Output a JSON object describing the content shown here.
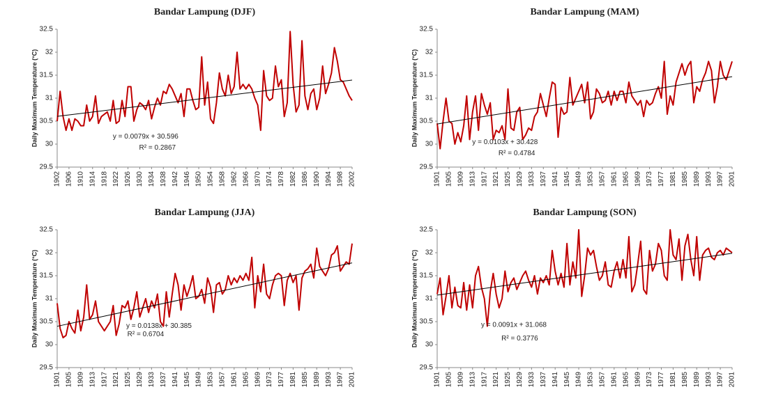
{
  "chart_data": [
    {
      "type": "line",
      "title": "Bandar Lampung (DJF)",
      "y_label": "Daily Maximum Temperature (°C)",
      "color": "#c00000",
      "x": [
        1902,
        1903,
        1904,
        1905,
        1906,
        1907,
        1908,
        1909,
        1910,
        1911,
        1912,
        1913,
        1914,
        1915,
        1916,
        1917,
        1918,
        1919,
        1920,
        1921,
        1922,
        1923,
        1924,
        1925,
        1926,
        1927,
        1928,
        1929,
        1930,
        1931,
        1932,
        1933,
        1934,
        1935,
        1936,
        1937,
        1938,
        1939,
        1940,
        1941,
        1942,
        1943,
        1944,
        1945,
        1946,
        1947,
        1948,
        1949,
        1950,
        1951,
        1952,
        1953,
        1954,
        1955,
        1956,
        1957,
        1958,
        1959,
        1960,
        1961,
        1962,
        1963,
        1964,
        1965,
        1966,
        1967,
        1968,
        1969,
        1970,
        1971,
        1972,
        1973,
        1974,
        1975,
        1976,
        1977,
        1978,
        1979,
        1980,
        1981,
        1982,
        1983,
        1984,
        1985,
        1986,
        1987,
        1988,
        1989,
        1990,
        1991,
        1992,
        1993,
        1994,
        1995,
        1996,
        1997,
        1998,
        1999,
        2000,
        2001,
        2002
      ],
      "values": [
        30.5,
        31.15,
        30.6,
        30.3,
        30.55,
        30.3,
        30.55,
        30.5,
        30.4,
        30.4,
        30.85,
        30.5,
        30.6,
        31.05,
        30.45,
        30.6,
        30.65,
        30.7,
        30.5,
        30.95,
        30.45,
        30.5,
        30.95,
        30.6,
        31.25,
        31.25,
        30.5,
        30.75,
        30.9,
        30.85,
        30.75,
        30.95,
        30.55,
        30.8,
        31.0,
        30.85,
        31.15,
        31.1,
        31.3,
        31.2,
        31.05,
        30.9,
        31.1,
        30.6,
        31.2,
        31.2,
        30.95,
        30.75,
        30.8,
        31.9,
        30.85,
        31.35,
        30.55,
        30.45,
        30.9,
        31.55,
        31.2,
        31.05,
        31.5,
        31.1,
        31.25,
        32.0,
        31.2,
        31.3,
        31.2,
        31.3,
        31.2,
        31.0,
        30.85,
        30.3,
        31.6,
        31.05,
        30.95,
        31.0,
        31.7,
        31.25,
        31.4,
        30.6,
        30.9,
        32.45,
        31.3,
        30.7,
        30.85,
        32.25,
        31.05,
        30.75,
        31.1,
        31.2,
        30.75,
        31.0,
        31.7,
        31.1,
        31.3,
        31.55,
        32.1,
        31.8,
        31.4,
        31.35,
        31.2,
        31.05,
        30.95
      ],
      "xlim": [
        1902,
        2002
      ],
      "xticks": [
        1902,
        1906,
        1910,
        1914,
        1918,
        1922,
        1926,
        1930,
        1934,
        1938,
        1942,
        1946,
        1950,
        1954,
        1958,
        1962,
        1966,
        1970,
        1974,
        1978,
        1982,
        1986,
        1990,
        1994,
        1998,
        2002
      ],
      "ylim": [
        29.5,
        32.5
      ],
      "yticks": [
        29.5,
        30,
        30.5,
        31,
        31.5,
        32,
        32.5
      ],
      "grid": false,
      "trendline": {
        "slope": 0.0079,
        "intercept": 30.596,
        "color": "#000000",
        "label": "y = 0.0079x + 30.596",
        "r2_label": "R² = 0.2867"
      }
    },
    {
      "type": "line",
      "title": "Bandar Lampung (MAM)",
      "y_label": "Daily Maximum Temperature (°C)",
      "color": "#c00000",
      "x": [
        1901,
        1902,
        1903,
        1904,
        1905,
        1906,
        1907,
        1908,
        1909,
        1910,
        1911,
        1912,
        1913,
        1914,
        1915,
        1916,
        1917,
        1918,
        1919,
        1920,
        1921,
        1922,
        1923,
        1924,
        1925,
        1926,
        1927,
        1928,
        1929,
        1930,
        1931,
        1932,
        1933,
        1934,
        1935,
        1936,
        1937,
        1938,
        1939,
        1940,
        1941,
        1942,
        1943,
        1944,
        1945,
        1946,
        1947,
        1948,
        1949,
        1950,
        1951,
        1952,
        1953,
        1954,
        1955,
        1956,
        1957,
        1958,
        1959,
        1960,
        1961,
        1962,
        1963,
        1964,
        1965,
        1966,
        1967,
        1968,
        1969,
        1970,
        1971,
        1972,
        1973,
        1974,
        1975,
        1976,
        1977,
        1978,
        1979,
        1980,
        1981,
        1982,
        1983,
        1984,
        1985,
        1986,
        1987,
        1988,
        1989,
        1990,
        1991,
        1992,
        1993,
        1994,
        1995,
        1996,
        1997,
        1998,
        1999,
        2000,
        2001
      ],
      "values": [
        30.45,
        29.9,
        30.5,
        31.0,
        30.5,
        30.45,
        30.0,
        30.25,
        30.05,
        30.4,
        31.05,
        30.1,
        30.7,
        31.05,
        30.3,
        31.1,
        30.85,
        30.65,
        30.9,
        30.1,
        30.3,
        30.25,
        30.4,
        30.1,
        31.2,
        30.35,
        30.3,
        30.7,
        30.8,
        30.1,
        30.2,
        30.35,
        30.3,
        30.6,
        30.7,
        31.1,
        30.85,
        30.6,
        31.0,
        31.35,
        31.3,
        30.15,
        30.8,
        30.65,
        30.7,
        31.45,
        30.85,
        31.0,
        31.15,
        31.3,
        30.9,
        31.35,
        30.55,
        30.7,
        31.2,
        31.1,
        30.9,
        30.95,
        31.15,
        30.85,
        31.15,
        30.95,
        31.15,
        31.15,
        30.9,
        31.35,
        31.05,
        30.95,
        30.85,
        30.95,
        30.6,
        30.95,
        30.85,
        30.9,
        31.1,
        31.25,
        31.0,
        31.8,
        30.65,
        31.05,
        30.85,
        31.35,
        31.55,
        31.75,
        31.5,
        31.7,
        31.8,
        30.9,
        31.25,
        31.15,
        31.4,
        31.55,
        31.8,
        31.6,
        30.9,
        31.25,
        31.8,
        31.5,
        31.4,
        31.6,
        31.8
      ],
      "xlim": [
        1901,
        2001
      ],
      "xticks": [
        1901,
        1905,
        1909,
        1913,
        1917,
        1921,
        1925,
        1929,
        1933,
        1937,
        1941,
        1945,
        1949,
        1953,
        1957,
        1961,
        1965,
        1969,
        1973,
        1977,
        1981,
        1985,
        1989,
        1993,
        1997,
        2001
      ],
      "ylim": [
        29.5,
        32.5
      ],
      "yticks": [
        29.5,
        30,
        30.5,
        31,
        31.5,
        32,
        32.5
      ],
      "grid": false,
      "trendline": {
        "slope": 0.0103,
        "intercept": 30.428,
        "color": "#000000",
        "label": "y = 0.0103x + 30.428",
        "r2_label": "R² = 0.4784"
      }
    },
    {
      "type": "line",
      "title": "Bandar Lampung (JJA)",
      "y_label": "Daily Maximum Temperature (°C)",
      "color": "#c00000",
      "x": [
        1901,
        1902,
        1903,
        1904,
        1905,
        1906,
        1907,
        1908,
        1909,
        1910,
        1911,
        1912,
        1913,
        1914,
        1915,
        1916,
        1917,
        1918,
        1919,
        1920,
        1921,
        1922,
        1923,
        1924,
        1925,
        1926,
        1927,
        1928,
        1929,
        1930,
        1931,
        1932,
        1933,
        1934,
        1935,
        1936,
        1937,
        1938,
        1939,
        1940,
        1941,
        1942,
        1943,
        1944,
        1945,
        1946,
        1947,
        1948,
        1949,
        1950,
        1951,
        1952,
        1953,
        1954,
        1955,
        1956,
        1957,
        1958,
        1959,
        1960,
        1961,
        1962,
        1963,
        1964,
        1965,
        1966,
        1967,
        1968,
        1969,
        1970,
        1971,
        1972,
        1973,
        1974,
        1975,
        1976,
        1977,
        1978,
        1979,
        1980,
        1981,
        1982,
        1983,
        1984,
        1985,
        1986,
        1987,
        1988,
        1989,
        1990,
        1991,
        1992,
        1993,
        1994,
        1995,
        1996,
        1997,
        1998,
        1999,
        2000,
        2001
      ],
      "values": [
        30.9,
        30.35,
        30.15,
        30.2,
        30.5,
        30.35,
        30.25,
        30.75,
        30.3,
        30.6,
        31.3,
        30.55,
        30.65,
        30.95,
        30.5,
        30.4,
        30.3,
        30.4,
        30.5,
        30.85,
        30.2,
        30.45,
        30.85,
        30.8,
        30.95,
        30.55,
        30.8,
        31.15,
        30.6,
        30.8,
        31.0,
        30.7,
        30.95,
        30.8,
        31.1,
        30.5,
        30.4,
        31.15,
        30.6,
        31.1,
        31.55,
        31.3,
        30.75,
        31.3,
        31.05,
        31.25,
        31.5,
        31.0,
        31.05,
        31.2,
        30.9,
        31.45,
        31.25,
        30.7,
        31.3,
        31.35,
        31.1,
        31.2,
        31.5,
        31.3,
        31.45,
        31.35,
        31.5,
        31.4,
        31.55,
        31.4,
        31.9,
        30.8,
        31.5,
        31.15,
        31.75,
        31.1,
        31.0,
        31.3,
        31.5,
        31.55,
        31.5,
        30.85,
        31.4,
        31.55,
        31.35,
        31.5,
        30.75,
        31.45,
        31.6,
        31.65,
        31.75,
        31.45,
        32.1,
        31.7,
        31.6,
        31.5,
        31.65,
        31.95,
        32.0,
        32.15,
        31.6,
        31.7,
        31.8,
        31.75,
        32.2
      ],
      "xlim": [
        1901,
        2001
      ],
      "xticks": [
        1901,
        1905,
        1909,
        1913,
        1917,
        1921,
        1925,
        1929,
        1933,
        1937,
        1941,
        1945,
        1949,
        1953,
        1957,
        1961,
        1965,
        1969,
        1973,
        1977,
        1981,
        1985,
        1989,
        1993,
        1997,
        2001
      ],
      "ylim": [
        29.5,
        32.5
      ],
      "yticks": [
        29.5,
        30,
        30.5,
        31,
        31.5,
        32,
        32.5
      ],
      "grid": false,
      "trendline": {
        "slope": 0.0138,
        "intercept": 30.385,
        "color": "#000000",
        "label": "y = 0.0138x + 30.385",
        "r2_label": "R² = 0.6704"
      }
    },
    {
      "type": "line",
      "title": "Bandar Lampung (SON)",
      "y_label": "Daily Maximum Temperature (°C)",
      "color": "#c00000",
      "x": [
        1901,
        1902,
        1903,
        1904,
        1905,
        1906,
        1907,
        1908,
        1909,
        1910,
        1911,
        1912,
        1913,
        1914,
        1915,
        1916,
        1917,
        1918,
        1919,
        1920,
        1921,
        1922,
        1923,
        1924,
        1925,
        1926,
        1927,
        1928,
        1929,
        1930,
        1931,
        1932,
        1933,
        1934,
        1935,
        1936,
        1937,
        1938,
        1939,
        1940,
        1941,
        1942,
        1943,
        1944,
        1945,
        1946,
        1947,
        1948,
        1949,
        1950,
        1951,
        1952,
        1953,
        1954,
        1955,
        1956,
        1957,
        1958,
        1959,
        1960,
        1961,
        1962,
        1963,
        1964,
        1965,
        1966,
        1967,
        1968,
        1969,
        1970,
        1971,
        1972,
        1973,
        1974,
        1975,
        1976,
        1977,
        1978,
        1979,
        1980,
        1981,
        1982,
        1983,
        1984,
        1985,
        1986,
        1987,
        1988,
        1989,
        1990,
        1991,
        1992,
        1993,
        1994,
        1995,
        1996,
        1997,
        1998,
        1999,
        2000,
        2001
      ],
      "values": [
        31.1,
        31.45,
        30.65,
        31.05,
        31.5,
        30.8,
        31.25,
        30.85,
        30.8,
        31.35,
        30.75,
        31.3,
        30.8,
        31.5,
        31.7,
        31.25,
        31.0,
        30.4,
        31.15,
        31.55,
        31.1,
        30.8,
        31.0,
        31.6,
        31.15,
        31.35,
        31.45,
        31.2,
        31.35,
        31.5,
        31.6,
        31.4,
        31.25,
        31.5,
        31.1,
        31.45,
        31.35,
        31.5,
        31.3,
        32.05,
        31.6,
        31.3,
        31.55,
        31.25,
        32.2,
        31.3,
        31.8,
        31.45,
        32.5,
        31.05,
        31.5,
        32.1,
        31.95,
        32.05,
        31.7,
        31.4,
        31.5,
        31.8,
        31.3,
        31.25,
        31.6,
        31.8,
        31.45,
        31.85,
        31.45,
        32.35,
        31.15,
        31.3,
        31.75,
        32.25,
        31.2,
        31.1,
        32.05,
        31.6,
        31.75,
        32.2,
        32.05,
        31.5,
        31.4,
        32.5,
        31.95,
        31.85,
        32.3,
        31.4,
        32.15,
        32.4,
        31.85,
        31.5,
        32.35,
        31.4,
        31.95,
        32.05,
        32.1,
        31.9,
        31.85,
        32.0,
        32.05,
        31.95,
        32.1,
        32.05,
        32.0
      ],
      "xlim": [
        1901,
        2001
      ],
      "xticks": [
        1901,
        1905,
        1909,
        1913,
        1917,
        1921,
        1925,
        1929,
        1933,
        1937,
        1941,
        1945,
        1949,
        1953,
        1957,
        1961,
        1965,
        1969,
        1973,
        1977,
        1981,
        1985,
        1989,
        1993,
        1997,
        2001
      ],
      "ylim": [
        29.5,
        32.5
      ],
      "yticks": [
        29.5,
        30,
        30.5,
        31,
        31.5,
        32,
        32.5
      ],
      "grid": false,
      "trendline": {
        "slope": 0.0091,
        "intercept": 31.068,
        "color": "#000000",
        "label": "y = 0.0091x + 31.068",
        "r2_label": "R² = 0.3776"
      }
    }
  ]
}
